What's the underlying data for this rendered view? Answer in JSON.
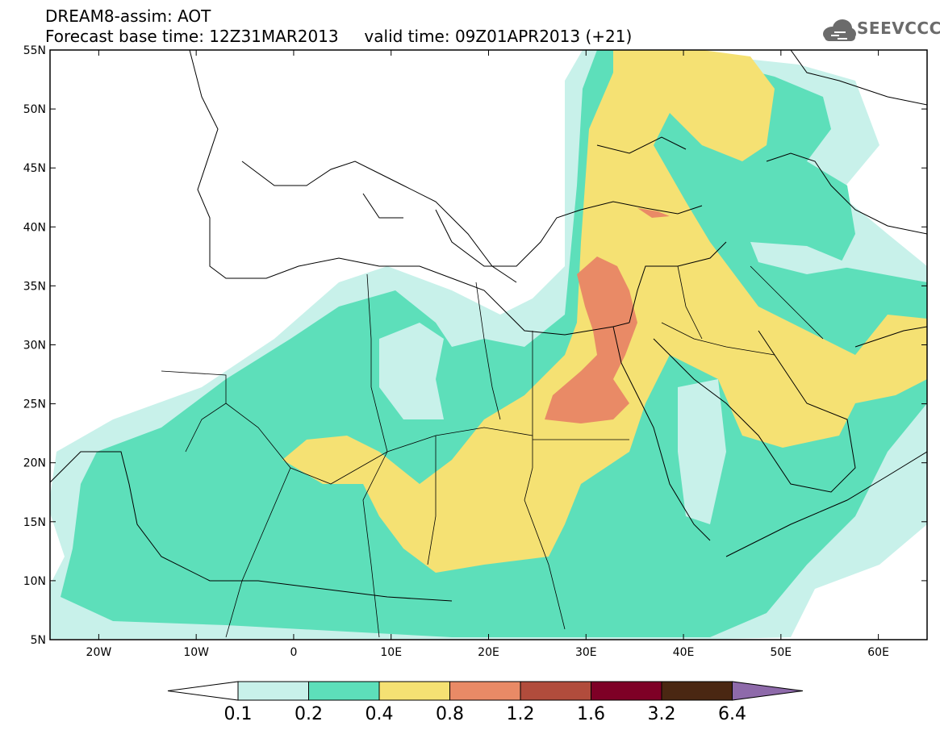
{
  "header": {
    "line1": "DREAM8-assim: AOT",
    "line2": "Forecast base time: 12Z31MAR2013     valid time: 09Z01APR2013 (+21)"
  },
  "logo": {
    "text": "SEEVCCC",
    "icon": "cloud-icon",
    "color": "#6b6b6b"
  },
  "map": {
    "lon_range": [
      -25,
      65
    ],
    "lat_range": [
      5,
      55
    ],
    "lat_labels": [
      "55N",
      "50N",
      "45N",
      "40N",
      "35N",
      "30N",
      "25N",
      "20N",
      "15N",
      "10N",
      "5N"
    ],
    "lat_values": [
      55,
      50,
      45,
      40,
      35,
      30,
      25,
      20,
      15,
      10,
      5
    ],
    "lon_labels": [
      "20W",
      "10W",
      "0",
      "10E",
      "20E",
      "30E",
      "40E",
      "50E",
      "60E"
    ],
    "lon_values": [
      -20,
      -10,
      0,
      10,
      20,
      30,
      40,
      50,
      60
    ]
  },
  "colorbar": {
    "labels": [
      "0.1",
      "0.2",
      "0.4",
      "0.8",
      "1.2",
      "1.6",
      "3.2",
      "6.4"
    ],
    "colors": [
      "#ffffff",
      "#c8f1ea",
      "#5ddfba",
      "#f5e173",
      "#e98a66",
      "#b14c3c",
      "#7e0026",
      "#4a2712",
      "#8e6aaa"
    ]
  }
}
